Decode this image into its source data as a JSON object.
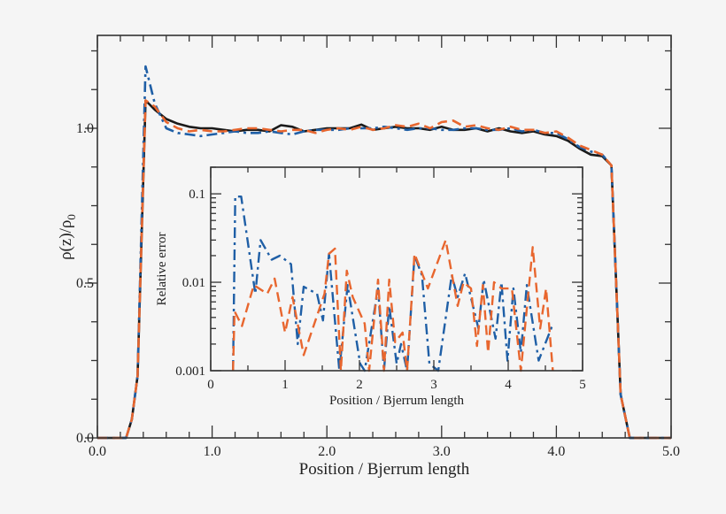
{
  "colors": {
    "black": "#1a1a1a",
    "blue": "#1f5fa6",
    "orange": "#e8662e",
    "background": "#f5f5f5"
  },
  "chart_data": [
    {
      "type": "line",
      "title": "",
      "xlabel": "Position / Bjerrum length",
      "ylabel": "ρ(z)/ρ0",
      "xlim": [
        0,
        5
      ],
      "ylim": [
        0,
        1.3
      ],
      "xticks": [
        0,
        1,
        2,
        3,
        4,
        5
      ],
      "xtick_labels": [
        "0.0",
        "1.0",
        "2.0",
        "3.0",
        "4.0",
        "5.0"
      ],
      "yticks": [
        0,
        0.5,
        1.0
      ],
      "ytick_labels": [
        "0.0",
        "0.5",
        "1.0"
      ],
      "grid": false,
      "series": [
        {
          "style": "solid",
          "color": "#1a1a1a",
          "x": [
            0,
            0.25,
            0.3,
            0.35,
            0.42,
            0.5,
            0.6,
            0.7,
            0.8,
            0.9,
            1.0,
            1.1,
            1.2,
            1.3,
            1.4,
            1.5,
            1.6,
            1.7,
            1.8,
            1.9,
            2.0,
            2.1,
            2.2,
            2.3,
            2.4,
            2.5,
            2.6,
            2.7,
            2.8,
            2.9,
            3.0,
            3.1,
            3.2,
            3.3,
            3.4,
            3.5,
            3.6,
            3.7,
            3.8,
            3.9,
            4.0,
            4.1,
            4.2,
            4.3,
            4.4,
            4.48,
            4.56,
            4.64,
            5.0
          ],
          "y": [
            0,
            0,
            0.06,
            0.2,
            1.09,
            1.06,
            1.03,
            1.015,
            1.005,
            1.0,
            1.0,
            0.995,
            0.99,
            0.995,
            0.995,
            0.99,
            1.01,
            1.005,
            0.99,
            0.995,
            1.0,
            1.0,
            1.0,
            1.012,
            0.995,
            1.0,
            1.005,
            1.0,
            1.0,
            0.995,
            1.005,
            0.995,
            0.995,
            1.0,
            0.99,
            1.0,
            0.99,
            0.985,
            0.99,
            0.98,
            0.975,
            0.96,
            0.935,
            0.915,
            0.91,
            0.88,
            0.14,
            0,
            0
          ]
        },
        {
          "style": "dashdot",
          "color": "#1f5fa6",
          "x": [
            0,
            0.25,
            0.3,
            0.35,
            0.42,
            0.5,
            0.6,
            0.7,
            0.8,
            0.9,
            1.0,
            1.1,
            1.2,
            1.3,
            1.4,
            1.5,
            1.6,
            1.7,
            1.8,
            1.9,
            2.0,
            2.1,
            2.2,
            2.3,
            2.4,
            2.5,
            2.6,
            2.7,
            2.8,
            2.9,
            3.0,
            3.1,
            3.2,
            3.3,
            3.4,
            3.5,
            3.6,
            3.7,
            3.8,
            3.9,
            4.0,
            4.1,
            4.2,
            4.3,
            4.4,
            4.48,
            4.56,
            4.64,
            5.0
          ],
          "y": [
            0,
            0,
            0.06,
            0.2,
            1.2,
            1.08,
            1.0,
            0.985,
            0.98,
            0.975,
            0.98,
            0.985,
            0.99,
            0.985,
            0.985,
            0.99,
            0.985,
            0.98,
            0.99,
            0.995,
            0.995,
            0.995,
            1.0,
            1.0,
            1.0,
            1.005,
            1.0,
            0.995,
            1.0,
            1.0,
            0.995,
            0.995,
            1.0,
            1.0,
            0.995,
            0.995,
            1.0,
            0.99,
            0.995,
            0.985,
            0.985,
            0.965,
            0.94,
            0.925,
            0.915,
            0.88,
            0.14,
            0,
            0
          ]
        },
        {
          "style": "dashed",
          "color": "#e8662e",
          "x": [
            0,
            0.25,
            0.3,
            0.35,
            0.42,
            0.5,
            0.6,
            0.7,
            0.8,
            0.9,
            1.0,
            1.1,
            1.2,
            1.3,
            1.4,
            1.5,
            1.6,
            1.7,
            1.8,
            1.9,
            2.0,
            2.1,
            2.2,
            2.3,
            2.4,
            2.5,
            2.6,
            2.7,
            2.8,
            2.9,
            3.0,
            3.1,
            3.2,
            3.3,
            3.4,
            3.5,
            3.6,
            3.7,
            3.8,
            3.9,
            4.0,
            4.1,
            4.2,
            4.3,
            4.4,
            4.48,
            4.56,
            4.64,
            5.0
          ],
          "y": [
            0,
            0,
            0.06,
            0.2,
            1.09,
            1.07,
            1.02,
            1.0,
            0.99,
            0.995,
            0.99,
            0.99,
            0.995,
            1.0,
            1.0,
            0.995,
            0.99,
            0.995,
            0.995,
            0.985,
            0.995,
            1.0,
            0.995,
            1.005,
            0.995,
            1.0,
            1.01,
            1.005,
            1.015,
            1.0,
            1.02,
            1.025,
            1.005,
            1.01,
            1.0,
            0.995,
            1.005,
            0.995,
            0.995,
            0.985,
            0.99,
            0.97,
            0.945,
            0.93,
            0.915,
            0.88,
            0.14,
            0,
            0
          ]
        }
      ]
    },
    {
      "type": "line",
      "title": "",
      "xlabel": "Position / Bjerrum length",
      "ylabel": "Relative error",
      "xlim": [
        0,
        5
      ],
      "ylim": [
        0.001,
        0.2
      ],
      "yscale": "log",
      "xticks": [
        0,
        1,
        2,
        3,
        4,
        5
      ],
      "xtick_labels": [
        "0",
        "1",
        "2",
        "3",
        "4",
        "5"
      ],
      "yticks": [
        0.001,
        0.01,
        0.1
      ],
      "ytick_labels": [
        "0.001",
        "0.01",
        "0.1"
      ],
      "grid": false,
      "series": [
        {
          "style": "dashdot",
          "color": "#1f5fa6",
          "x": [
            0.3,
            0.33,
            0.41,
            0.6,
            0.67,
            0.82,
            0.93,
            1.08,
            1.17,
            1.25,
            1.43,
            1.51,
            1.59,
            1.73,
            1.84,
            2.01,
            2.07,
            2.25,
            2.33,
            2.4,
            2.5,
            2.56,
            2.64,
            2.74,
            2.84,
            2.94,
            3.06,
            3.24,
            3.32,
            3.42,
            3.6,
            3.67,
            3.83,
            3.91,
            3.99,
            4.07,
            4.17,
            4.25,
            4.41,
            4.59
          ],
          "y": [
            0.001,
            0.093,
            0.093,
            0.0074,
            0.03,
            0.018,
            0.02,
            0.016,
            0.002,
            0.0089,
            0.0074,
            0.0037,
            0.021,
            0.001,
            0.0093,
            0.0012,
            0.001,
            0.0085,
            0.001,
            0.0054,
            0.0012,
            0.002,
            0.001,
            0.02,
            0.012,
            0.0012,
            0.001,
            0.012,
            0.0068,
            0.0126,
            0.003,
            0.0107,
            0.0023,
            0.01,
            0.0013,
            0.0085,
            0.0016,
            0.0093,
            0.0013,
            0.0032
          ]
        },
        {
          "style": "dashed",
          "color": "#e8662e",
          "x": [
            0.3,
            0.32,
            0.42,
            0.58,
            0.76,
            0.86,
            1.0,
            1.1,
            1.25,
            1.53,
            1.59,
            1.67,
            1.75,
            1.83,
            1.91,
            2.07,
            2.13,
            2.25,
            2.33,
            2.4,
            2.48,
            2.58,
            2.64,
            2.74,
            2.92,
            3.16,
            3.32,
            3.4,
            3.5,
            3.58,
            3.66,
            3.73,
            3.81,
            3.91,
            4.05,
            4.17,
            4.33,
            4.43,
            4.51,
            4.6
          ],
          "y": [
            0.001,
            0.0047,
            0.0032,
            0.0093,
            0.0074,
            0.011,
            0.0027,
            0.0068,
            0.0015,
            0.0074,
            0.021,
            0.024,
            0.001,
            0.0135,
            0.0068,
            0.0034,
            0.001,
            0.0107,
            0.001,
            0.0107,
            0.0021,
            0.0027,
            0.001,
            0.021,
            0.0085,
            0.03,
            0.0054,
            0.01,
            0.0085,
            0.0019,
            0.0093,
            0.0016,
            0.01,
            0.0085,
            0.0085,
            0.001,
            0.025,
            0.003,
            0.0085,
            0.001
          ]
        }
      ]
    }
  ]
}
